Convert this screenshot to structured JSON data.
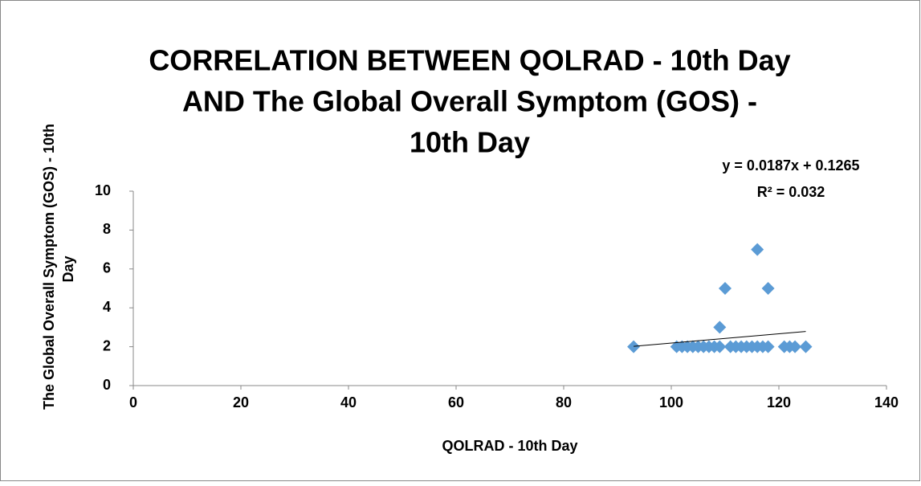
{
  "chart_data": {
    "type": "scatter",
    "title": [
      "CORRELATION BETWEEN QOLRAD - 10th Day",
      "AND The Global Overall Symptom (GOS) -",
      "10th Day"
    ],
    "x_label": "QOLRAD - 10th Day",
    "y_label": [
      "The Global Overall Symptom (GOS) - 10th",
      "Day"
    ],
    "series": [
      {
        "color": "#5b9bd5",
        "x": [
          93,
          101,
          102,
          103,
          104,
          105,
          106,
          107,
          108,
          109,
          109,
          110,
          111,
          112,
          113,
          114,
          115,
          116,
          116,
          117,
          118,
          118,
          121,
          122,
          123,
          125
        ],
        "values": [
          2,
          2,
          2,
          2,
          2,
          2,
          2,
          2,
          2,
          2,
          3,
          5,
          2,
          2,
          2,
          2,
          2,
          2,
          7,
          2,
          2,
          5,
          2,
          2,
          2,
          2
        ]
      }
    ],
    "trendline": {
      "equation": "y = 0.0187x + 0.1265",
      "r_squared": "R² = 0.032"
    },
    "xlim": [
      0,
      140
    ],
    "xticks": [
      0,
      20,
      40,
      60,
      80,
      100,
      120,
      140
    ],
    "ylim": [
      0,
      10
    ],
    "yticks": [
      0,
      2,
      4,
      6,
      8,
      10
    ],
    "grid": false
  }
}
